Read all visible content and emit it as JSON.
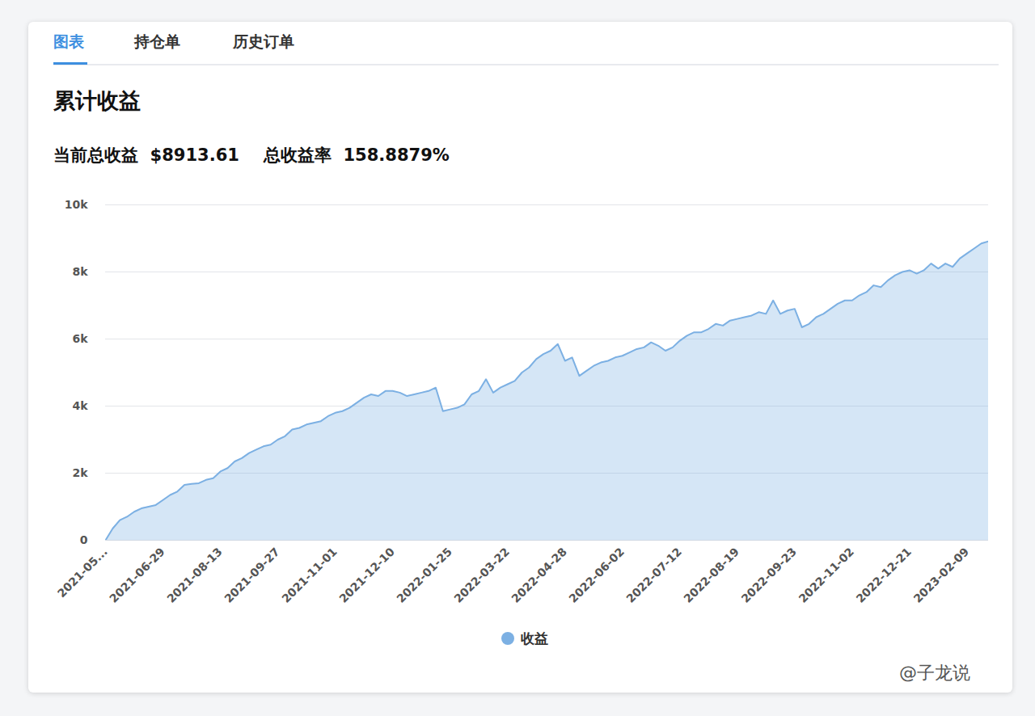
{
  "chart_data": {
    "type": "area",
    "tabs": [
      "图表",
      "持仓单",
      "历史订单"
    ],
    "title": "累计收益",
    "summary": [
      {
        "label": "当前总收益",
        "value": "$8913.61"
      },
      {
        "label": "总收益率",
        "value": "158.8879%"
      }
    ],
    "watermark": "@子龙说",
    "categories": [
      "2021-05...",
      null,
      null,
      null,
      null,
      null,
      null,
      null,
      "2021-06-29",
      null,
      null,
      null,
      null,
      null,
      null,
      null,
      "2021-08-13",
      null,
      null,
      null,
      null,
      null,
      null,
      null,
      "2021-09-27",
      null,
      null,
      null,
      null,
      null,
      null,
      null,
      "2021-11-01",
      null,
      null,
      null,
      null,
      null,
      null,
      null,
      "2021-12-10",
      null,
      null,
      null,
      null,
      null,
      null,
      null,
      "2022-01-25",
      null,
      null,
      null,
      null,
      null,
      null,
      null,
      "2022-03-22",
      null,
      null,
      null,
      null,
      null,
      null,
      null,
      "2022-04-28",
      null,
      null,
      null,
      null,
      null,
      null,
      null,
      "2022-06-02",
      null,
      null,
      null,
      null,
      null,
      null,
      null,
      "2022-07-12",
      null,
      null,
      null,
      null,
      null,
      null,
      null,
      "2022-08-19",
      null,
      null,
      null,
      null,
      null,
      null,
      null,
      "2022-09-23",
      null,
      null,
      null,
      null,
      null,
      null,
      null,
      "2022-11-02",
      null,
      null,
      null,
      null,
      null,
      null,
      null,
      "2022-12-21",
      null,
      null,
      null,
      null,
      null,
      null,
      null,
      "2023-02-09",
      null,
      null,
      null
    ],
    "series": [
      {
        "name": "收益",
        "color": "#7cb0e3",
        "values": [
          0,
          350,
          600,
          700,
          850,
          950,
          1000,
          1050,
          1200,
          1350,
          1450,
          1650,
          1680,
          1700,
          1800,
          1850,
          2050,
          2150,
          2350,
          2450,
          2600,
          2700,
          2800,
          2850,
          3000,
          3100,
          3300,
          3350,
          3450,
          3500,
          3550,
          3700,
          3800,
          3850,
          3950,
          4100,
          4250,
          4350,
          4300,
          4450,
          4450,
          4400,
          4300,
          4350,
          4400,
          4450,
          4550,
          3850,
          3900,
          3950,
          4050,
          4350,
          4450,
          4800,
          4400,
          4550,
          4650,
          4750,
          5000,
          5150,
          5400,
          5550,
          5650,
          5850,
          5350,
          5450,
          4900,
          5050,
          5200,
          5300,
          5350,
          5450,
          5500,
          5600,
          5700,
          5750,
          5900,
          5800,
          5650,
          5750,
          5950,
          6100,
          6200,
          6200,
          6300,
          6450,
          6400,
          6550,
          6600,
          6650,
          6700,
          6800,
          6750,
          7150,
          6750,
          6850,
          6900,
          6350,
          6450,
          6650,
          6750,
          6900,
          7050,
          7150,
          7150,
          7300,
          7400,
          7600,
          7550,
          7750,
          7900,
          8000,
          8050,
          7950,
          8050,
          8250,
          8100,
          8250,
          8150,
          8400,
          8550,
          8700,
          8850,
          8913.61
        ]
      }
    ],
    "ylim": [
      0,
      10000
    ],
    "yticks": [
      {
        "value": 0,
        "label": "0"
      },
      {
        "value": 2000,
        "label": "2k"
      },
      {
        "value": 4000,
        "label": "4k"
      },
      {
        "value": 6000,
        "label": "6k"
      },
      {
        "value": 8000,
        "label": "8k"
      },
      {
        "value": 10000,
        "label": "10k"
      }
    ],
    "grid": true,
    "legend": "bottom"
  }
}
